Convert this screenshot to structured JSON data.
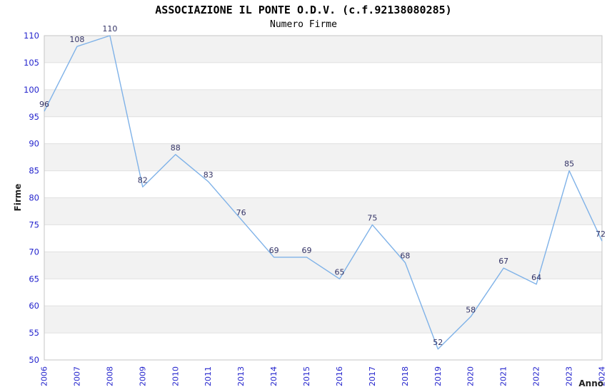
{
  "chart_data": {
    "type": "line",
    "title": "ASSOCIAZIONE IL PONTE O.D.V. (c.f.92138080285)",
    "subtitle": "Numero Firme",
    "xlabel": "Anno",
    "ylabel": "Firme",
    "categories": [
      "2006",
      "2007",
      "2008",
      "2009",
      "2010",
      "2011",
      "2013",
      "2014",
      "2015",
      "2016",
      "2017",
      "2018",
      "2019",
      "2020",
      "2021",
      "2022",
      "2023",
      "2024"
    ],
    "series": [
      {
        "name": "Numero Firme",
        "values": [
          96,
          108,
          110,
          82,
          88,
          83,
          76,
          69,
          69,
          65,
          75,
          68,
          52,
          58,
          67,
          64,
          85,
          72
        ]
      }
    ],
    "ylim": [
      50,
      110
    ],
    "ytick_step": 5,
    "grid": true,
    "alternating_bands": true,
    "data_labels": true,
    "legend_position": "none",
    "x_tick_rotation": -90
  },
  "style": {
    "background": "#ffffff",
    "line_color": "#7fb2e8",
    "tick_label_color": "#2424cd",
    "data_label_color": "#333366",
    "band_color": "#f2f2f2",
    "grid_color": "#e0e0e0",
    "border_color": "#c6c6c6",
    "title_color": "#000000",
    "axis_title_color": "#222222"
  }
}
